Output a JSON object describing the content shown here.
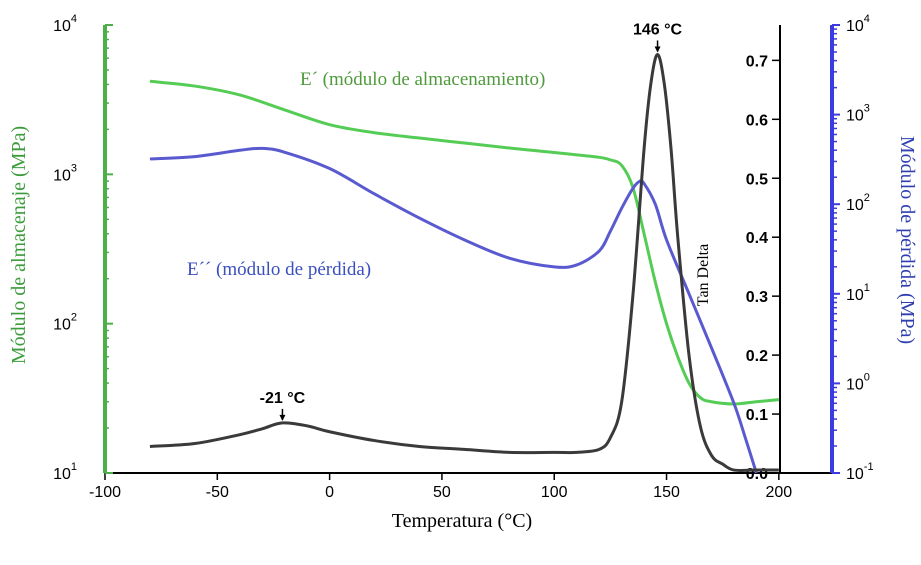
{
  "chart_data": {
    "type": "line",
    "xlabel": "Temperatura (°C)",
    "x_ticks": [
      "-100",
      "-50",
      "0",
      "50",
      "100",
      "150",
      "200"
    ],
    "xlim": [
      -100,
      225
    ],
    "y_left": {
      "label": "Módulo de almacenaje (MPa)",
      "scale": "log",
      "range": [
        10,
        10000
      ],
      "tick_labels": [
        "10",
        "1",
        "10",
        "2",
        "10",
        "3",
        "10",
        "4"
      ],
      "ticks": [
        {
          "base": "10",
          "exp": "1"
        },
        {
          "base": "10",
          "exp": "2"
        },
        {
          "base": "10",
          "exp": "3"
        },
        {
          "base": "10",
          "exp": "4"
        }
      ],
      "color": "#4caf4a"
    },
    "y_tan": {
      "label": "Tan Delta",
      "range": [
        0.0,
        0.76
      ],
      "ticks": [
        "0.0",
        "0.1",
        "0.2",
        "0.3",
        "0.4",
        "0.5",
        "0.6",
        "0.7"
      ],
      "color": "#000000"
    },
    "y_right": {
      "label": "Módulo de pérdida (MPa)",
      "scale": "log",
      "range": [
        0.1,
        10000
      ],
      "ticks": [
        {
          "base": "10",
          "exp": "-1"
        },
        {
          "base": "10",
          "exp": "0"
        },
        {
          "base": "10",
          "exp": "1"
        },
        {
          "base": "10",
          "exp": "2"
        },
        {
          "base": "10",
          "exp": "3"
        },
        {
          "base": "10",
          "exp": "4"
        }
      ],
      "color": "#2b2bd6"
    },
    "series": [
      {
        "name": "E´ (módulo de almacenamiento)",
        "axis": "left",
        "color": "#55cc55",
        "x": [
          -80,
          -60,
          -40,
          -20,
          0,
          20,
          40,
          60,
          80,
          100,
          110,
          120,
          125,
          130,
          135,
          140,
          145,
          150,
          155,
          160,
          165,
          170,
          180,
          190,
          200
        ],
        "y": [
          4200,
          3900,
          3400,
          2700,
          2150,
          1900,
          1750,
          1620,
          1500,
          1400,
          1350,
          1300,
          1250,
          1150,
          820,
          400,
          190,
          100,
          60,
          40,
          32,
          30,
          29,
          30,
          31
        ]
      },
      {
        "name": "E´´ (módulo de pérdida)",
        "axis": "right",
        "color": "#5a5ad0",
        "x": [
          -80,
          -60,
          -40,
          -30,
          -20,
          0,
          20,
          40,
          60,
          80,
          100,
          110,
          120,
          125,
          130,
          135,
          138,
          140,
          145,
          150,
          160,
          170,
          180,
          185,
          190
        ],
        "y": [
          320,
          340,
          400,
          420,
          380,
          250,
          130,
          70,
          40,
          25,
          20,
          21,
          30,
          50,
          90,
          150,
          180,
          170,
          100,
          40,
          10,
          2.5,
          0.6,
          0.25,
          0.1
        ]
      },
      {
        "name": "Tan Delta",
        "axis": "tan",
        "color": "#3a3a3a",
        "x": [
          -80,
          -60,
          -40,
          -30,
          -21,
          -10,
          0,
          20,
          40,
          60,
          80,
          100,
          110,
          120,
          125,
          130,
          135,
          140,
          143,
          146,
          149,
          152,
          155,
          160,
          165,
          170,
          175,
          180,
          190,
          200
        ],
        "y": [
          0.045,
          0.05,
          0.065,
          0.075,
          0.085,
          0.08,
          0.07,
          0.055,
          0.045,
          0.04,
          0.035,
          0.035,
          0.035,
          0.04,
          0.06,
          0.12,
          0.3,
          0.55,
          0.66,
          0.71,
          0.66,
          0.55,
          0.4,
          0.2,
          0.08,
          0.03,
          0.015,
          0.005,
          0.005,
          0.005
        ]
      }
    ],
    "annotations": [
      {
        "text": "146 °C",
        "x": 146,
        "y": 0.71,
        "axis": "tan"
      },
      {
        "text": "-21 °C",
        "x": -21,
        "y": 0.085,
        "axis": "tan"
      }
    ],
    "grid": false
  }
}
